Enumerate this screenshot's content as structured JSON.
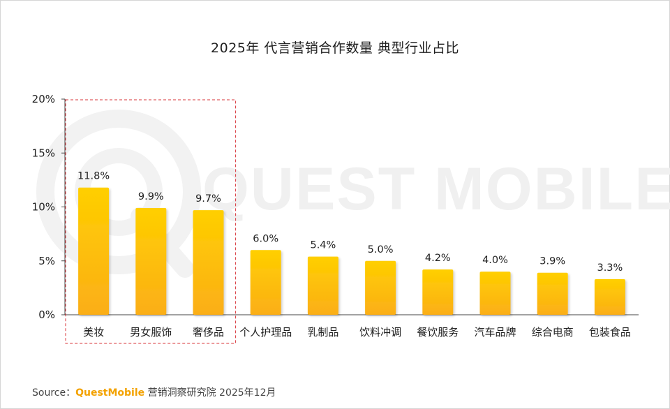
{
  "title": "2025年 代言营销合作数量 典型行业占比",
  "watermark_text": "QUEST MOBILE",
  "source": {
    "prefix": "Source：",
    "brand": "QuestMobile",
    "suffix": " 营销洞察研究院 2025年12月"
  },
  "colors": {
    "bar_top": "#ffcf00",
    "bar_bottom": "#fbae17",
    "highlight_box": "#d9343a",
    "axis": "#444444",
    "text": "#222222"
  },
  "chart_data": {
    "type": "bar",
    "title": "2025年 代言营销合作数量 典型行业占比",
    "categories": [
      "美妆",
      "男女服饰",
      "奢侈品",
      "个人护理品",
      "乳制品",
      "饮料冲调",
      "餐饮服务",
      "汽车品牌",
      "综合电商",
      "包装食品"
    ],
    "values": [
      11.8,
      9.9,
      9.7,
      6.0,
      5.4,
      5.0,
      4.2,
      4.0,
      3.9,
      3.3
    ],
    "data_labels": [
      "11.8%",
      "9.9%",
      "9.7%",
      "6.0%",
      "5.4%",
      "5.0%",
      "4.2%",
      "4.0%",
      "3.9%",
      "3.3%"
    ],
    "y_ticks": [
      0,
      5,
      10,
      15,
      20
    ],
    "y_tick_labels": [
      "0%",
      "5%",
      "10%",
      "15%",
      "20%"
    ],
    "ylim": [
      0,
      20
    ],
    "grid": false,
    "legend": "none",
    "highlighted_categories": [
      "美妆",
      "男女服饰",
      "奢侈品"
    ]
  }
}
